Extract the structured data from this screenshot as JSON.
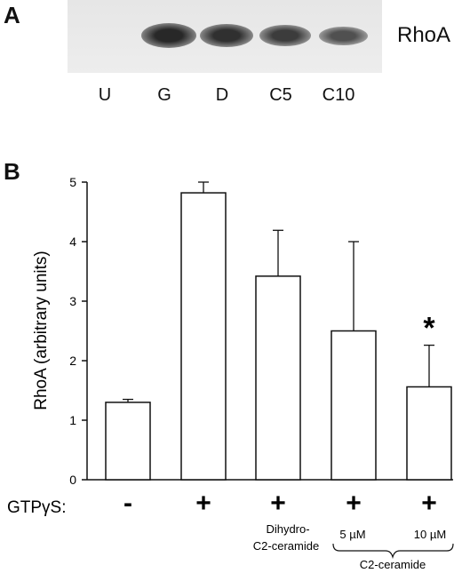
{
  "panel_a": {
    "letter": "A",
    "band_label": "RhoA",
    "lanes": [
      {
        "label": "U",
        "intensity": 0.0
      },
      {
        "label": "G",
        "intensity": 1.0
      },
      {
        "label": "D",
        "intensity": 0.9
      },
      {
        "label": "C5",
        "intensity": 0.75
      },
      {
        "label": "C10",
        "intensity": 0.5
      }
    ]
  },
  "panel_b": {
    "letter": "B",
    "gtp_label": "GTPγS:",
    "treatment_labels": {
      "dihydro_line1": "Dihydro-",
      "dihydro_line2": "C2-ceramide",
      "conc_5": "5 µM",
      "conc_10": "10 µM",
      "ceramide": "C2-ceramide"
    }
  },
  "chart_data": {
    "type": "bar",
    "ylabel": "RhoA (arbitrary units)",
    "ylim": [
      0,
      5
    ],
    "yticks": [
      "0",
      "1",
      "2",
      "3",
      "4",
      "5"
    ],
    "categories": [
      "-",
      "+",
      "+",
      "+",
      "+"
    ],
    "values": [
      1.3,
      4.82,
      3.42,
      2.5,
      1.56
    ],
    "error_upper": [
      0.05,
      0.18,
      0.77,
      1.5,
      0.7
    ],
    "significance": [
      "",
      "",
      "",
      "",
      "*"
    ]
  }
}
